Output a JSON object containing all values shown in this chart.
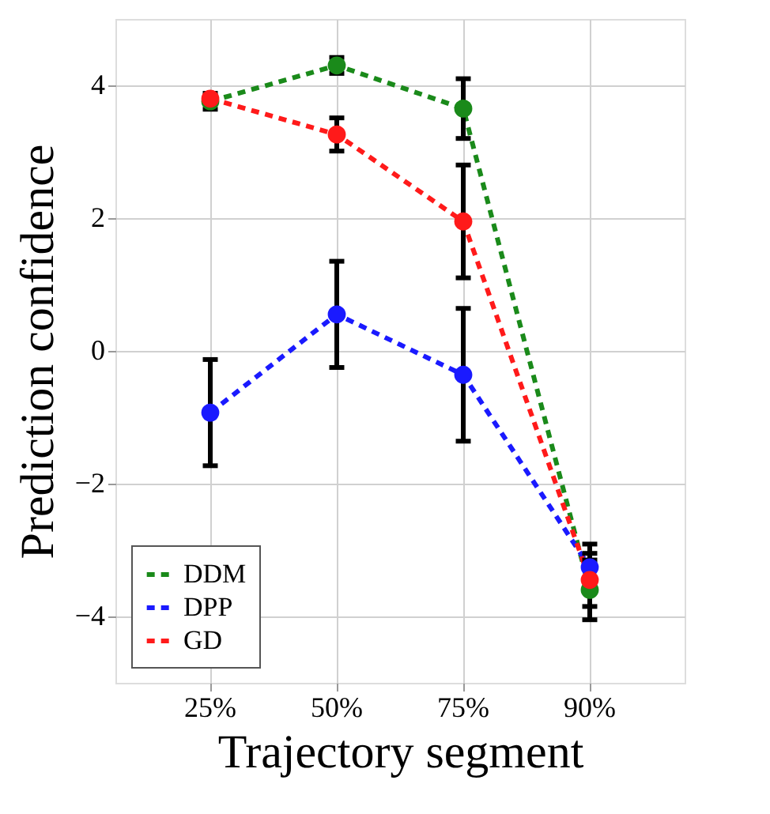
{
  "chart_data": {
    "type": "line",
    "xlabel": "Trajectory segment",
    "ylabel": "Prediction confidence",
    "categories": [
      "25%",
      "50%",
      "75%",
      "90%"
    ],
    "series": [
      {
        "name": "DDM",
        "color": "#1a8a1a",
        "values": [
          3.76,
          4.3,
          3.65,
          -3.6
        ],
        "errors": [
          0.12,
          0.12,
          0.45,
          0.45
        ]
      },
      {
        "name": "DPP",
        "color": "#1a1aff",
        "values": [
          -0.93,
          0.55,
          -0.36,
          -3.26
        ],
        "errors": [
          0.8,
          0.8,
          1.0,
          0.35
        ]
      },
      {
        "name": "GD",
        "color": "#ff1a1a",
        "values": [
          3.8,
          3.26,
          1.95,
          -3.45
        ],
        "errors": [
          null,
          0.25,
          0.85,
          0.4
        ]
      }
    ],
    "ylim": [
      -5,
      5
    ],
    "yticks": [
      -4,
      -2,
      0,
      2,
      4
    ],
    "grid": true,
    "legend": "bottom left",
    "marker": "circle",
    "line_style": "dashed"
  }
}
